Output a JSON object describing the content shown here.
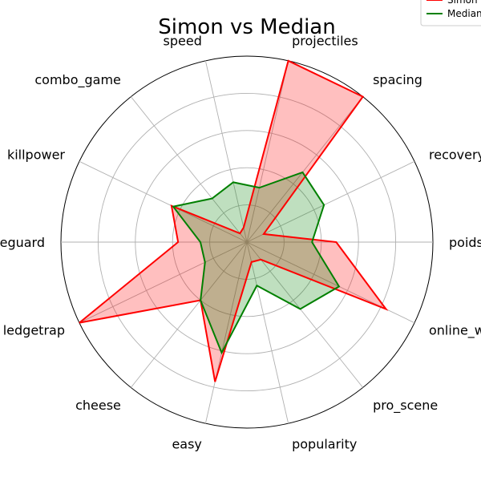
{
  "chart_data": {
    "type": "radar",
    "title": "Simon vs Median",
    "axes": [
      "poids",
      "recovery",
      "spacing",
      "projectiles",
      "speed",
      "combo_game",
      "killpower",
      "edgeguard",
      "ledgetrap",
      "cheese",
      "easy",
      "popularity",
      "pro_scene",
      "online_winrate"
    ],
    "rmax": 10,
    "rings": [
      2,
      4,
      6,
      8,
      10
    ],
    "grid": true,
    "legend_position": "top-right",
    "series": [
      {
        "name": "Simon",
        "color": "#ff0000",
        "fill": "#ff0000",
        "fill_opacity": 0.25,
        "values": [
          4.8,
          1.0,
          10.0,
          10.0,
          0.8,
          0.6,
          4.5,
          3.7,
          10.0,
          4.0,
          7.7,
          1.1,
          1.2,
          8.3
        ]
      },
      {
        "name": "Median",
        "color": "#008000",
        "fill": "#008000",
        "fill_opacity": 0.25,
        "values": [
          3.5,
          4.6,
          4.8,
          3.0,
          3.3,
          3.0,
          4.4,
          2.5,
          2.5,
          4.0,
          6.1,
          2.4,
          4.6,
          5.5
        ]
      }
    ]
  }
}
